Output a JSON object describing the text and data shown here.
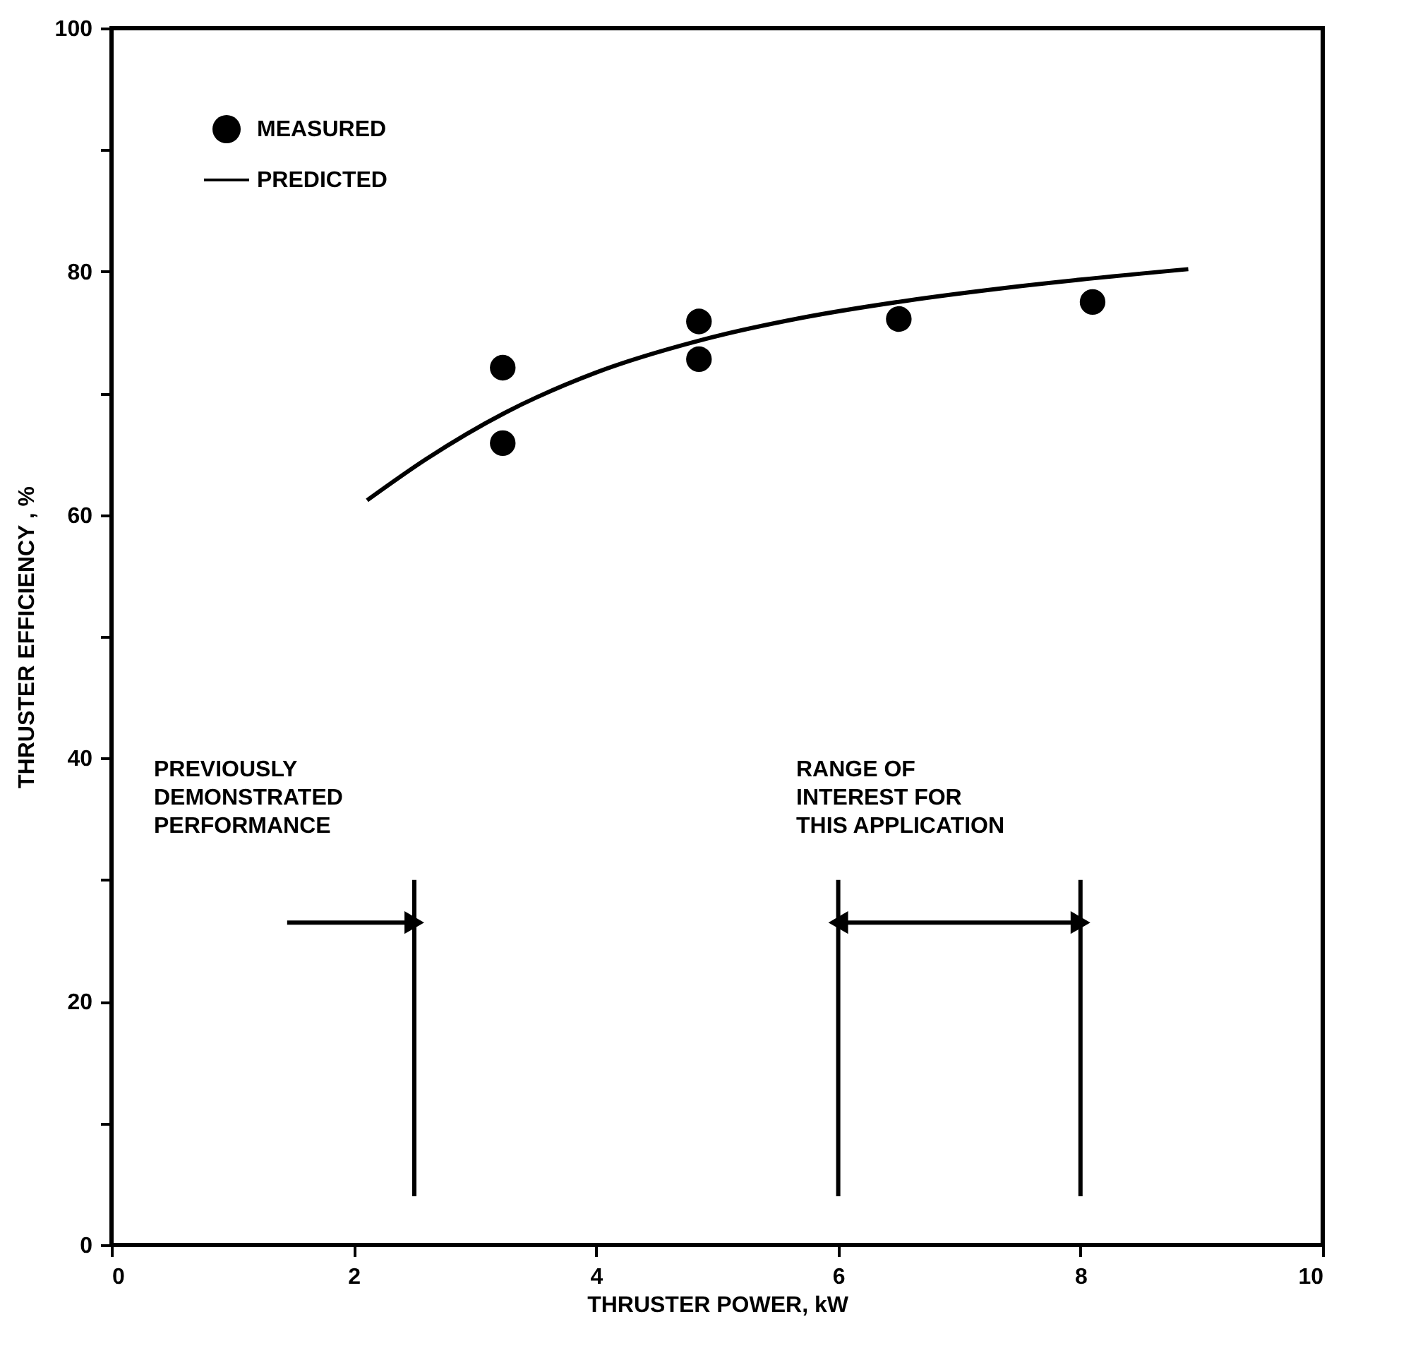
{
  "chart_data": {
    "type": "scatter",
    "xlabel": "THRUSTER POWER, kW",
    "ylabel": "THRUSTER EFFICIENCY , %",
    "xlim": [
      0,
      10
    ],
    "ylim": [
      0,
      100
    ],
    "xticks": [
      0,
      2,
      4,
      6,
      8,
      10
    ],
    "yticks": [
      0,
      {
        "value": 10,
        "label": null
      },
      20,
      {
        "value": 30,
        "label": null
      },
      40,
      {
        "value": 50,
        "label": null
      },
      60,
      {
        "value": 70,
        "label": null
      },
      80,
      {
        "value": 90,
        "label": null
      },
      100
    ],
    "grid": false,
    "legend": "top left",
    "series": [
      {
        "name": "MEASURED",
        "marker": "circle",
        "color": "#000000",
        "x": [
          3.23,
          3.23,
          4.85,
          4.85,
          6.5,
          8.1
        ],
        "values": [
          72.1,
          65.9,
          75.9,
          72.8,
          76.1,
          77.5
        ]
      },
      {
        "name": "PREDICTED",
        "type": "line",
        "marker": "none",
        "line_style": "solid",
        "color": "#000000",
        "x": [
          2.11,
          2.6,
          3.25,
          4.0,
          4.88,
          5.7,
          6.56,
          7.5,
          8.89
        ],
        "values": [
          61.2,
          64.6,
          68.4,
          71.7,
          74.4,
          76.2,
          77.6,
          78.8,
          80.2
        ]
      },
      {
        "type": "line",
        "marker": "none",
        "line_style": "solid",
        "color": "#000000",
        "x": [
          2.5,
          2.5
        ],
        "values": [
          4,
          30
        ]
      },
      {
        "type": "line",
        "marker": "none",
        "line_style": "solid",
        "color": "#000000",
        "x": [
          6,
          6
        ],
        "values": [
          4,
          30
        ]
      },
      {
        "type": "line",
        "marker": "none",
        "line_style": "solid",
        "color": "#000000",
        "x": [
          8,
          8
        ],
        "values": [
          4,
          30
        ]
      },
      {
        "type": "line",
        "marker": "triangle",
        "line_style": "solid",
        "color": "#000000",
        "x": [
          1.45,
          2.5
        ],
        "values": [
          26.5,
          26.5
        ]
      },
      {
        "type": "line",
        "marker": "triangle",
        "line_style": "solid",
        "color": "#000000",
        "x": [
          6,
          8
        ],
        "values": [
          26.5,
          26.5
        ]
      }
    ],
    "annotations": [
      "PREVIOUSLY\nDEMONSTRATED\nPERFORMANCE",
      "RANGE OF\nINTEREST FOR\nTHIS APPLICATION"
    ]
  }
}
